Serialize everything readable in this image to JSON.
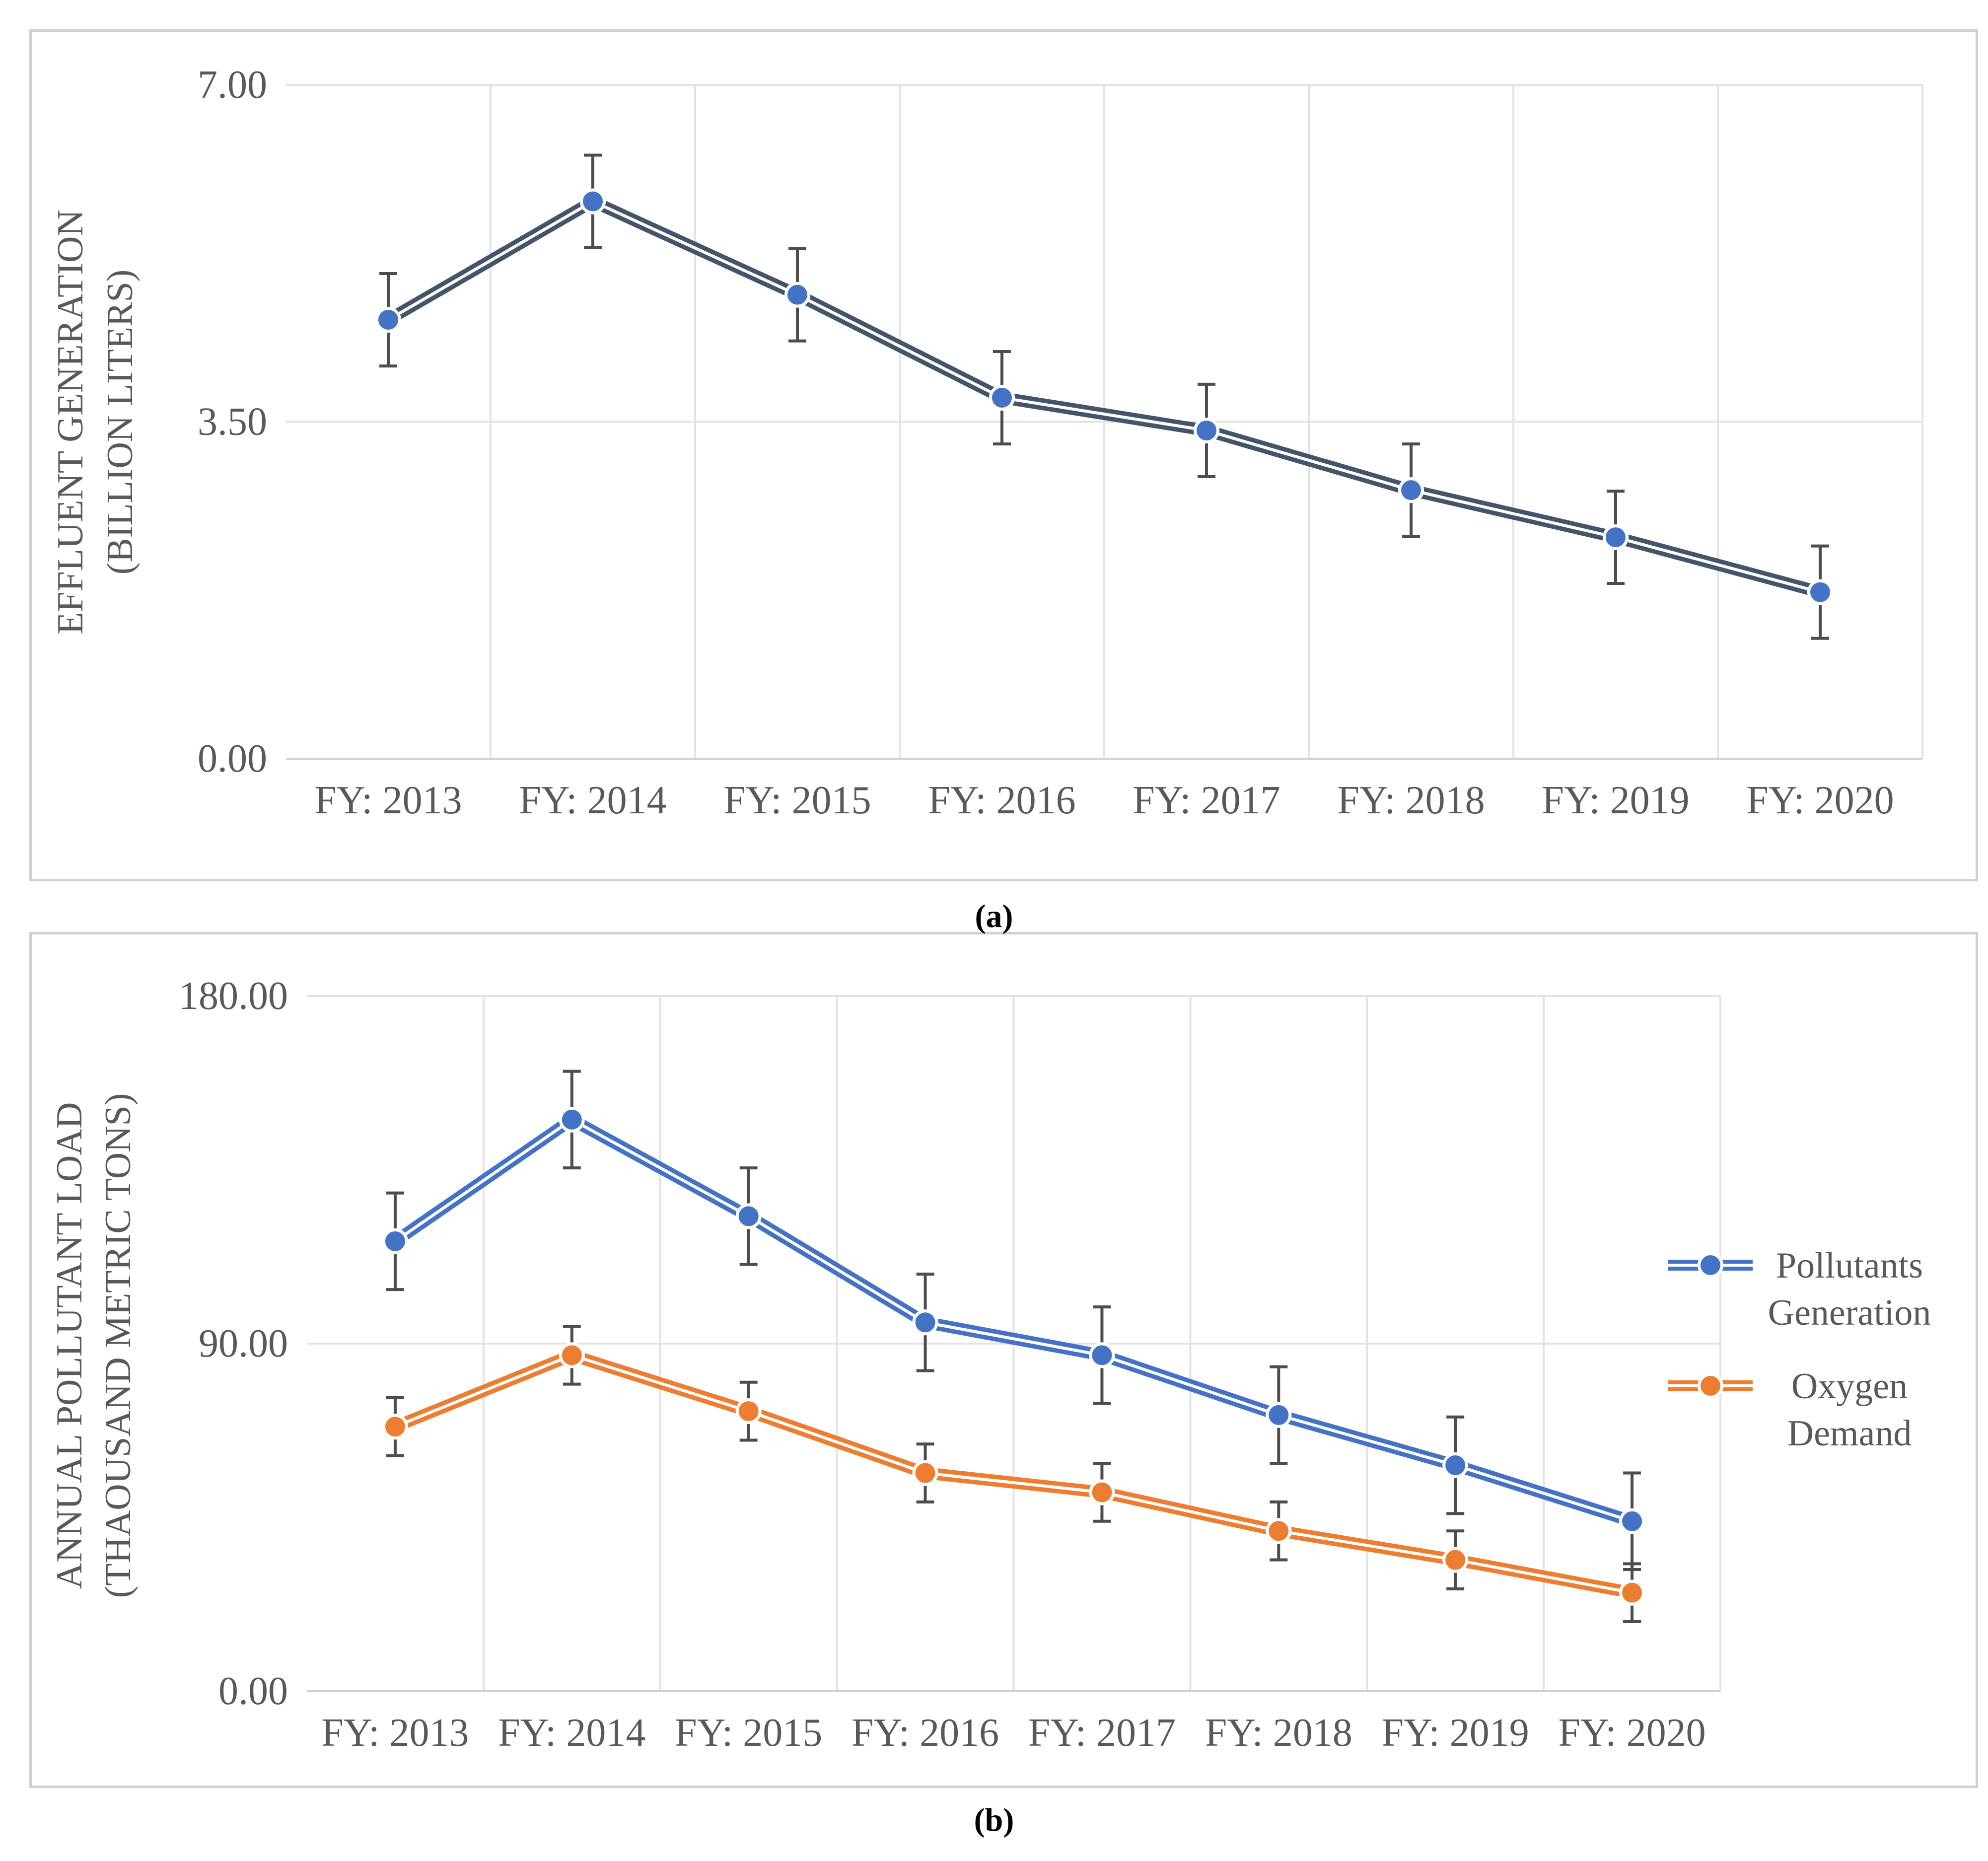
{
  "captions": {
    "a": "(a)",
    "b": "(b)"
  },
  "chart_data": [
    {
      "type": "line",
      "id": "a",
      "title": "",
      "ylabel_line1": "EFFLUENT GENERATION",
      "ylabel_line2": "(BILLION LITERS)",
      "xlabel": "",
      "categories": [
        "FY: 2013",
        "FY: 2014",
        "FY: 2015",
        "FY: 2016",
        "FY: 2017",
        "FY: 2018",
        "FY: 2019",
        "FY: 2020"
      ],
      "ylim": [
        0,
        7
      ],
      "yticks": [
        0,
        3.5,
        7
      ],
      "ytick_labels": [
        "0.00",
        "3.50",
        "7.00"
      ],
      "grid": true,
      "legend": null,
      "series": [
        {
          "name": "Effluent Generation",
          "color": "#44546a",
          "marker_color": "#4472c4",
          "values": [
            4.56,
            5.79,
            4.82,
            3.75,
            3.41,
            2.79,
            2.3,
            1.73
          ],
          "error": [
            0.48,
            0.48,
            0.48,
            0.48,
            0.48,
            0.48,
            0.48,
            0.48
          ]
        }
      ]
    },
    {
      "type": "line",
      "id": "b",
      "title": "",
      "ylabel_line1": "ANNUAL POLLUTANT LOAD",
      "ylabel_line2": "(THAOUSAND METRIC TONS)",
      "xlabel": "",
      "categories": [
        "FY: 2013",
        "FY: 2014",
        "FY: 2015",
        "FY: 2016",
        "FY: 2017",
        "FY: 2018",
        "FY: 2019",
        "FY: 2020"
      ],
      "ylim": [
        0,
        180
      ],
      "yticks": [
        0,
        90,
        180
      ],
      "ytick_labels": [
        "0.00",
        "90.00",
        "180.00"
      ],
      "grid": true,
      "legend": "right",
      "series": [
        {
          "name": "Pollutants Generation",
          "legend_line1": "Pollutants",
          "legend_line2": "Generation",
          "color": "#4472c4",
          "marker_color": "#4472c4",
          "values": [
            116.5,
            148.0,
            123.0,
            95.5,
            87.0,
            71.5,
            58.5,
            44.0
          ],
          "error": [
            12.5,
            12.5,
            12.5,
            12.5,
            12.5,
            12.5,
            12.5,
            12.5
          ]
        },
        {
          "name": "Oxygen Demand",
          "legend_line1": "Oxygen",
          "legend_line2": "Demand",
          "color": "#ed7d31",
          "marker_color": "#ed7d31",
          "values": [
            68.5,
            87.0,
            72.5,
            56.5,
            51.5,
            41.5,
            34.0,
            25.5
          ],
          "error": [
            7.5,
            7.5,
            7.5,
            7.5,
            7.5,
            7.5,
            7.5,
            7.5
          ]
        }
      ]
    }
  ]
}
